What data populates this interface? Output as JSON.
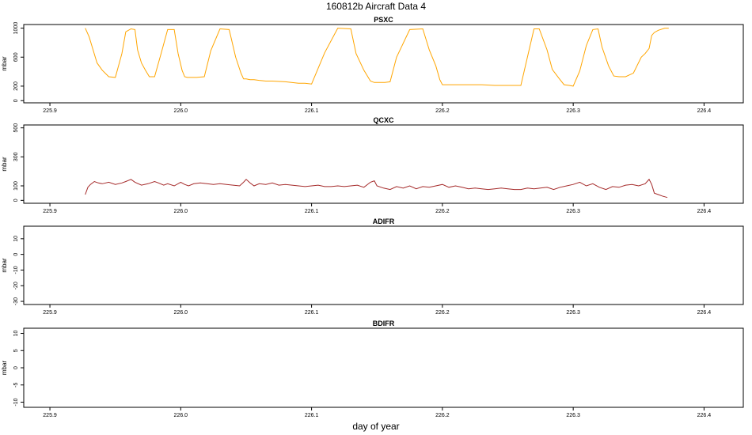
{
  "title": "160812b   Aircraft Data 4",
  "xlabel": "day of year",
  "chart_data": [
    {
      "type": "line",
      "title": "PSXC",
      "ylabel": "mbar",
      "color": "#FFA500",
      "xlim": [
        225.88,
        226.43
      ],
      "ylim": [
        -30,
        1050
      ],
      "xticks": [
        "225.9",
        "226.0",
        "226.1",
        "226.2",
        "226.3",
        "226.4"
      ],
      "yticks": [
        "0",
        "200",
        "600",
        "1000"
      ],
      "series": [
        {
          "x": [
            225.927,
            225.93,
            225.933,
            225.936,
            225.94,
            225.945,
            225.95,
            225.955,
            225.958,
            225.962,
            225.965,
            225.967,
            225.97,
            225.973,
            225.976,
            225.98,
            225.985,
            225.99,
            225.995,
            225.998,
            226.001,
            226.003,
            226.005,
            226.008,
            226.012,
            226.018,
            226.023,
            226.03,
            226.037,
            226.042,
            226.046,
            226.048,
            226.05,
            226.053,
            226.056,
            226.06,
            226.065,
            226.07,
            226.08,
            226.09,
            226.095,
            226.1,
            226.11,
            226.12,
            226.13,
            226.134,
            226.14,
            226.145,
            226.148,
            226.152,
            226.156,
            226.16,
            226.165,
            226.175,
            226.185,
            226.19,
            226.195,
            226.198,
            226.2,
            226.204,
            226.208,
            226.212,
            226.22,
            226.23,
            226.24,
            226.25,
            226.26,
            226.265,
            226.27,
            226.274,
            226.28,
            226.284,
            226.289,
            226.293,
            226.297,
            226.3,
            226.305,
            226.31,
            226.315,
            226.319,
            226.322,
            226.327,
            226.331,
            226.335,
            226.34,
            226.346,
            226.352,
            226.355,
            226.358,
            226.36,
            226.362,
            226.365,
            226.37,
            226.373
          ],
          "y": [
            1000,
            880,
            700,
            520,
            420,
            330,
            320,
            650,
            950,
            990,
            980,
            700,
            520,
            420,
            330,
            330,
            650,
            980,
            980,
            650,
            420,
            330,
            320,
            320,
            320,
            330,
            690,
            990,
            980,
            600,
            380,
            300,
            300,
            290,
            290,
            280,
            270,
            270,
            260,
            240,
            240,
            230,
            660,
            1000,
            990,
            650,
            420,
            270,
            250,
            250,
            250,
            260,
            600,
            980,
            990,
            700,
            480,
            290,
            220,
            220,
            220,
            220,
            220,
            220,
            210,
            210,
            210,
            600,
            990,
            990,
            700,
            430,
            310,
            220,
            210,
            200,
            410,
            760,
            980,
            990,
            740,
            480,
            340,
            330,
            330,
            380,
            600,
            650,
            720,
            900,
            940,
            970,
            1000,
            1000
          ]
        }
      ]
    },
    {
      "type": "line",
      "title": "QCXC",
      "ylabel": "mbar",
      "color": "#A52A2A",
      "xlim": [
        225.88,
        226.43
      ],
      "ylim": [
        -20,
        520
      ],
      "xticks": [
        "225.9",
        "226.0",
        "226.1",
        "226.2",
        "226.3",
        "226.4"
      ],
      "yticks": [
        "0",
        "100",
        "300",
        "500"
      ],
      "series": [
        {
          "x": [
            225.927,
            225.929,
            225.931,
            225.934,
            225.937,
            225.94,
            225.945,
            225.95,
            225.955,
            225.958,
            225.962,
            225.965,
            225.97,
            225.975,
            225.98,
            225.983,
            225.987,
            225.99,
            225.995,
            226.0,
            226.003,
            226.006,
            226.01,
            226.015,
            226.02,
            226.025,
            226.03,
            226.035,
            226.04,
            226.045,
            226.048,
            226.05,
            226.053,
            226.056,
            226.06,
            226.065,
            226.07,
            226.075,
            226.08,
            226.085,
            226.09,
            226.095,
            226.1,
            226.105,
            226.11,
            226.115,
            226.12,
            226.125,
            226.13,
            226.135,
            226.14,
            226.145,
            226.148,
            226.15,
            226.155,
            226.16,
            226.165,
            226.17,
            226.175,
            226.18,
            226.185,
            226.19,
            226.195,
            226.2,
            226.205,
            226.21,
            226.215,
            226.22,
            226.225,
            226.23,
            226.235,
            226.24,
            226.245,
            226.25,
            226.255,
            226.26,
            226.265,
            226.27,
            226.275,
            226.28,
            226.285,
            226.29,
            226.295,
            226.3,
            226.305,
            226.31,
            226.315,
            226.32,
            226.325,
            226.33,
            226.335,
            226.34,
            226.345,
            226.35,
            226.355,
            226.358,
            226.36,
            226.362,
            226.365,
            226.368,
            226.372
          ],
          "y": [
            40,
            90,
            110,
            130,
            120,
            115,
            125,
            110,
            120,
            130,
            145,
            125,
            105,
            115,
            130,
            120,
            105,
            115,
            100,
            125,
            110,
            100,
            115,
            120,
            115,
            110,
            115,
            110,
            105,
            100,
            125,
            145,
            120,
            100,
            115,
            110,
            120,
            105,
            110,
            105,
            100,
            95,
            100,
            105,
            95,
            95,
            100,
            95,
            100,
            105,
            90,
            125,
            135,
            100,
            85,
            75,
            95,
            85,
            100,
            80,
            95,
            90,
            100,
            110,
            90,
            100,
            90,
            80,
            85,
            80,
            75,
            80,
            85,
            80,
            75,
            75,
            85,
            80,
            85,
            90,
            75,
            90,
            100,
            110,
            125,
            100,
            115,
            90,
            75,
            95,
            90,
            105,
            110,
            100,
            115,
            145,
            110,
            50,
            40,
            30,
            20
          ]
        }
      ]
    },
    {
      "type": "line",
      "title": "ADIFR",
      "ylabel": "mbar",
      "color": "#000000",
      "xlim": [
        225.88,
        226.43
      ],
      "ylim": [
        -32,
        18
      ],
      "xticks": [
        "225.9",
        "226.0",
        "226.1",
        "226.2",
        "226.3",
        "226.4"
      ],
      "yticks": [
        "-30",
        "-20",
        "-10",
        "0",
        "10"
      ],
      "series": [
        {
          "x": [],
          "y": []
        }
      ]
    },
    {
      "type": "line",
      "title": "BDIFR",
      "ylabel": "mbar",
      "color": "#000000",
      "xlim": [
        225.88,
        226.43
      ],
      "ylim": [
        -11.5,
        11.5
      ],
      "xticks": [
        "225.9",
        "226.0",
        "226.1",
        "226.2",
        "226.3",
        "226.4"
      ],
      "yticks": [
        "-10",
        "-5",
        "0",
        "5",
        "10"
      ],
      "series": [
        {
          "x": [],
          "y": []
        }
      ]
    }
  ]
}
